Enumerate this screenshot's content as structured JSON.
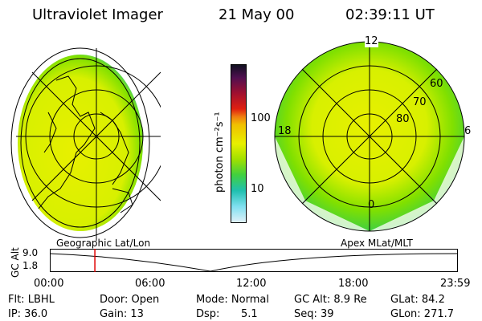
{
  "header": {
    "instrument": "Ultraviolet Imager",
    "date": "21 May 00",
    "time": "02:39:11 UT"
  },
  "colorbar": {
    "unit_label": "photon cm⁻²s⁻¹",
    "ticks": [
      "100",
      "10"
    ],
    "colors": [
      "#1a0a20",
      "#5a1050",
      "#a01020",
      "#e02010",
      "#f08010",
      "#f0c000",
      "#e8f000",
      "#a0e000",
      "#40d040",
      "#20c0b0",
      "#80e0f0",
      "#e0f0f8"
    ]
  },
  "left_panel": {
    "label": "Geographic Lat/Lon"
  },
  "right_panel": {
    "label": "Apex MLat/MLT",
    "mlt_labels": {
      "top": "12",
      "left": "18",
      "right": "6",
      "bottom": "0"
    },
    "mlat_labels": [
      "60",
      "70",
      "80"
    ]
  },
  "altitude_plot": {
    "ylabel": "GC Alt",
    "ymax": "9.0",
    "ymin": "1.8",
    "xticks": [
      "00:00",
      "06:00",
      "12:00",
      "18:00",
      "23:59"
    ],
    "marker_color": "#e00000",
    "marker_time_hours": 2.65
  },
  "footer": {
    "row1": {
      "filter": "Flt: LBHL",
      "door": "Door: Open",
      "mode": "Mode: Normal",
      "gc_alt": "GC Alt: 8.9 Re",
      "glat": "GLat: 84.2"
    },
    "row2": {
      "ip": "IP: 36.0",
      "gain": "Gain: 13",
      "dsp_label": "Dsp:",
      "dsp_value": "5.1",
      "seq": "Seq: 39",
      "glon": "GLon: 271.7"
    }
  }
}
